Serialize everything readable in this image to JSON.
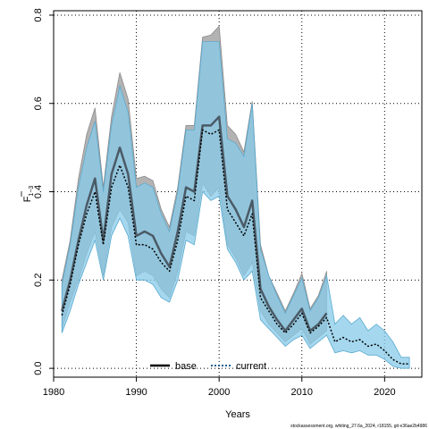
{
  "chart_data": {
    "type": "line",
    "xlabel": "Years",
    "ylabel": "F",
    "ylabel_sub": "1−3",
    "xlim": [
      1980,
      2024.5
    ],
    "ylim": [
      -0.02,
      0.81
    ],
    "xticks": [
      1980,
      1990,
      2000,
      2010,
      2020
    ],
    "yticks": [
      0.0,
      0.2,
      0.4,
      0.6,
      0.8
    ],
    "ytick_labels": [
      "0.0",
      "0.2",
      "0.4",
      "0.6",
      "0.8"
    ],
    "grid": true,
    "legend_placement": "bottom-center",
    "footnote": "stockassessment.org, whiting_27.6a_2024, r18155, git e36ae2b4986",
    "colors": {
      "base": "#000000",
      "current": "#1a5f8a",
      "base_band": "#b3b3b3",
      "current_band": "#87cbea"
    },
    "years": [
      1981,
      1982,
      1983,
      1984,
      1985,
      1986,
      1987,
      1988,
      1989,
      1990,
      1991,
      1992,
      1993,
      1994,
      1995,
      1996,
      1997,
      1998,
      1999,
      2000,
      2001,
      2002,
      2003,
      2004,
      2005,
      2006,
      2007,
      2008,
      2009,
      2010,
      2011,
      2012,
      2013,
      2014,
      2015,
      2016,
      2017,
      2018,
      2019,
      2020,
      2021,
      2022,
      2023
    ],
    "series": [
      {
        "name": "base",
        "values": [
          0.13,
          0.2,
          0.29,
          0.37,
          0.43,
          0.29,
          0.44,
          0.5,
          0.44,
          0.3,
          0.31,
          0.3,
          0.26,
          0.23,
          0.31,
          0.41,
          0.4,
          0.55,
          0.55,
          0.57,
          0.39,
          0.36,
          0.32,
          0.38,
          0.18,
          0.14,
          0.11,
          0.085,
          0.11,
          0.135,
          0.085,
          0.1,
          0.125,
          null,
          null,
          null,
          null,
          null,
          null,
          null,
          null,
          null,
          null
        ],
        "upper": [
          0.2,
          0.29,
          0.43,
          0.53,
          0.59,
          0.41,
          0.57,
          0.67,
          0.61,
          0.43,
          0.435,
          0.425,
          0.36,
          0.32,
          0.41,
          0.55,
          0.55,
          0.75,
          0.755,
          0.775,
          0.55,
          0.53,
          0.49,
          0.605,
          0.28,
          0.21,
          0.17,
          0.13,
          0.17,
          0.215,
          0.135,
          0.165,
          0.22,
          null,
          null,
          null,
          null,
          null,
          null,
          null,
          null,
          null,
          null
        ],
        "lower": [
          0.09,
          0.15,
          0.2,
          0.26,
          0.31,
          0.21,
          0.32,
          0.36,
          0.33,
          0.21,
          0.22,
          0.21,
          0.18,
          0.16,
          0.22,
          0.31,
          0.3,
          0.42,
          0.39,
          0.41,
          0.28,
          0.25,
          0.21,
          0.24,
          0.13,
          0.1,
          0.08,
          0.06,
          0.075,
          0.09,
          0.055,
          0.07,
          0.085,
          null,
          null,
          null,
          null,
          null,
          null,
          null,
          null,
          null,
          null
        ]
      },
      {
        "name": "current",
        "values": [
          0.12,
          0.19,
          0.28,
          0.35,
          0.4,
          0.28,
          0.41,
          0.46,
          0.41,
          0.28,
          0.28,
          0.27,
          0.24,
          0.22,
          0.29,
          0.39,
          0.38,
          0.54,
          0.53,
          0.54,
          0.36,
          0.33,
          0.3,
          0.35,
          0.16,
          0.13,
          0.1,
          0.08,
          0.1,
          0.125,
          0.08,
          0.095,
          0.115,
          0.06,
          0.07,
          0.06,
          0.065,
          0.05,
          0.055,
          0.04,
          0.02,
          0.01,
          0.01
        ],
        "upper": [
          0.19,
          0.28,
          0.41,
          0.5,
          0.56,
          0.4,
          0.55,
          0.64,
          0.58,
          0.41,
          0.42,
          0.41,
          0.35,
          0.31,
          0.4,
          0.54,
          0.54,
          0.74,
          0.74,
          0.74,
          0.52,
          0.51,
          0.48,
          0.6,
          0.27,
          0.21,
          0.165,
          0.125,
          0.165,
          0.205,
          0.13,
          0.16,
          0.21,
          0.1,
          0.12,
          0.1,
          0.115,
          0.085,
          0.1,
          0.085,
          0.06,
          0.025,
          0.025
        ],
        "lower": [
          0.08,
          0.13,
          0.19,
          0.24,
          0.29,
          0.2,
          0.3,
          0.34,
          0.3,
          0.2,
          0.2,
          0.19,
          0.16,
          0.15,
          0.2,
          0.29,
          0.28,
          0.4,
          0.38,
          0.39,
          0.27,
          0.24,
          0.2,
          0.22,
          0.11,
          0.09,
          0.07,
          0.05,
          0.065,
          0.075,
          0.045,
          0.06,
          0.075,
          0.035,
          0.04,
          0.035,
          0.04,
          0.03,
          0.03,
          0.02,
          0.005,
          0.0,
          0.0
        ]
      }
    ]
  }
}
